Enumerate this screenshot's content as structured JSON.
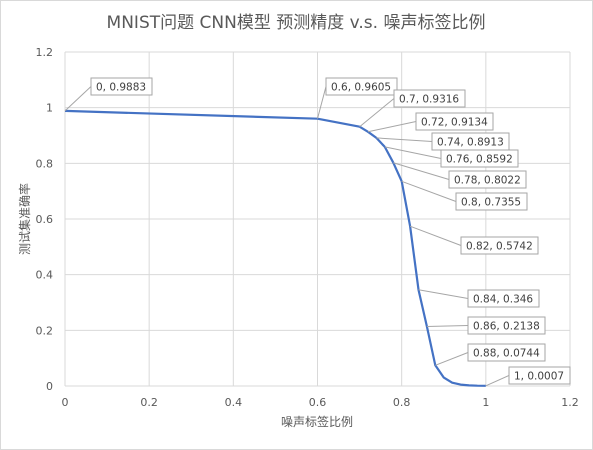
{
  "chart_data": {
    "type": "line",
    "title": "MNIST问题 CNN模型 预测精度 v.s. 噪声标签比例",
    "xlabel": "噪声标签比例",
    "ylabel": "测试集准确率",
    "xlim": [
      0,
      1.2
    ],
    "ylim": [
      0,
      1.2
    ],
    "x_ticks": [
      "0",
      "0.2",
      "0.4",
      "0.6",
      "0.8",
      "1",
      "1.2"
    ],
    "y_ticks": [
      "0",
      "0.2",
      "0.4",
      "0.6",
      "0.8",
      "1",
      "1.2"
    ],
    "grid": true,
    "legend": "none",
    "line_color": "#4472c4",
    "series": [
      {
        "x": [
          0,
          0.6,
          0.7,
          0.72,
          0.74,
          0.76,
          0.78,
          0.8,
          0.82,
          0.84,
          0.86,
          0.88,
          0.9,
          0.92,
          0.94,
          0.96,
          0.98,
          1
        ],
        "y": [
          0.9883,
          0.9605,
          0.9316,
          0.9134,
          0.8913,
          0.8592,
          0.8022,
          0.7355,
          0.5742,
          0.346,
          0.2138,
          0.0744,
          0.03,
          0.012,
          0.005,
          0.002,
          0.001,
          0.0007
        ]
      }
    ],
    "data_labels": [
      {
        "x": 0,
        "y": 0.9883,
        "text": "0, 0.9883"
      },
      {
        "x": 0.6,
        "y": 0.9605,
        "text": "0.6, 0.9605"
      },
      {
        "x": 0.7,
        "y": 0.9316,
        "text": "0.7, 0.9316"
      },
      {
        "x": 0.72,
        "y": 0.9134,
        "text": "0.72, 0.9134"
      },
      {
        "x": 0.74,
        "y": 0.8913,
        "text": "0.74, 0.8913"
      },
      {
        "x": 0.76,
        "y": 0.8592,
        "text": "0.76, 0.8592"
      },
      {
        "x": 0.78,
        "y": 0.8022,
        "text": "0.78, 0.8022"
      },
      {
        "x": 0.8,
        "y": 0.7355,
        "text": "0.8, 0.7355"
      },
      {
        "x": 0.82,
        "y": 0.5742,
        "text": "0.82, 0.5742"
      },
      {
        "x": 0.84,
        "y": 0.346,
        "text": "0.84, 0.346"
      },
      {
        "x": 0.86,
        "y": 0.2138,
        "text": "0.86, 0.2138"
      },
      {
        "x": 0.88,
        "y": 0.0744,
        "text": "0.88, 0.0744"
      },
      {
        "x": 1,
        "y": 0.0007,
        "text": "1, 0.0007"
      }
    ]
  }
}
